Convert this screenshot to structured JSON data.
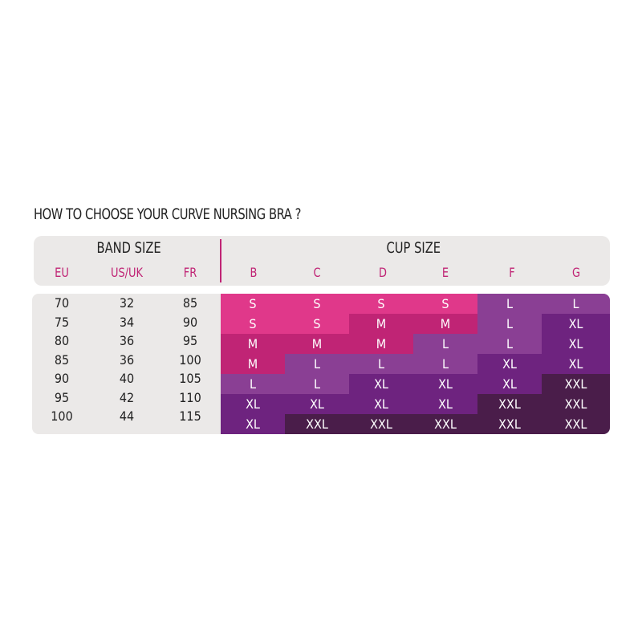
{
  "title": "HOW TO CHOOSE YOUR CURVE NURSING BRA ?",
  "band": {
    "label": "BAND SIZE",
    "columns": [
      "EU",
      "US/UK",
      "FR"
    ],
    "rows": [
      [
        "70",
        "32",
        "85"
      ],
      [
        "75",
        "34",
        "90"
      ],
      [
        "80",
        "36",
        "95"
      ],
      [
        "85",
        "36",
        "100"
      ],
      [
        "90",
        "40",
        "105"
      ],
      [
        "95",
        "42",
        "110"
      ],
      [
        "100",
        "44",
        "115"
      ]
    ]
  },
  "cup": {
    "label": "CUP SIZE",
    "columns": [
      "B",
      "C",
      "D",
      "E",
      "F",
      "G"
    ],
    "rows": [
      [
        "S",
        "S",
        "S",
        "S",
        "L",
        "L"
      ],
      [
        "S",
        "S",
        "M",
        "M",
        "L",
        "XL"
      ],
      [
        "M",
        "M",
        "M",
        "L",
        "L",
        "XL"
      ],
      [
        "M",
        "L",
        "L",
        "L",
        "XL",
        "XL"
      ],
      [
        "L",
        "L",
        "XL",
        "XL",
        "XL",
        "XXL"
      ],
      [
        "XL",
        "XL",
        "XL",
        "XL",
        "XXL",
        "XXL"
      ],
      [
        "XL",
        "XXL",
        "XXL",
        "XXL",
        "XXL",
        "XXL"
      ]
    ]
  },
  "colors": {
    "S": "#e0388a",
    "M": "#c02475",
    "L": "#8a3f94",
    "XL": "#6e237f",
    "XXL": "#4a1d4a",
    "accent": "#c02475"
  }
}
